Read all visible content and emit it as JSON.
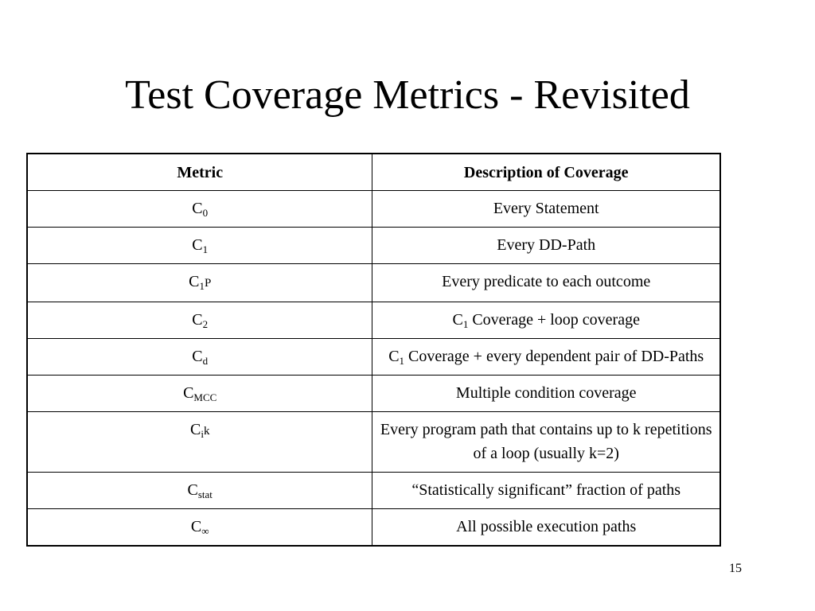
{
  "slide": {
    "title": "Test Coverage Metrics - Revisited",
    "page_number": "15"
  },
  "table": {
    "headers": [
      "Metric",
      "Description of Coverage"
    ],
    "rows": [
      {
        "metric": "C",
        "metric_sub": "0",
        "metric_suffix": "",
        "description_prefix": "",
        "description_sub": "",
        "description": "Every Statement"
      },
      {
        "metric": "C",
        "metric_sub": "1",
        "metric_suffix": "",
        "description_prefix": "",
        "description_sub": "",
        "description": "Every DD-Path"
      },
      {
        "metric": "C",
        "metric_sub": "1",
        "metric_suffix": "P",
        "description_prefix": "",
        "description_sub": "",
        "description": "Every predicate to each outcome"
      },
      {
        "metric": "C",
        "metric_sub": "2",
        "metric_suffix": "",
        "description_prefix": "C",
        "description_sub": "1",
        "description": " Coverage + loop coverage"
      },
      {
        "metric": "C",
        "metric_sub": "d",
        "metric_suffix": "",
        "description_prefix": "C",
        "description_sub": "1",
        "description": " Coverage + every dependent pair of DD-Paths"
      },
      {
        "metric": "C",
        "metric_sub": "MCC",
        "metric_suffix": "",
        "description_prefix": "",
        "description_sub": "",
        "description": "Multiple condition coverage"
      },
      {
        "metric": "C",
        "metric_sub": "i",
        "metric_suffix": "k",
        "description_prefix": "",
        "description_sub": "",
        "description": "Every program path that contains up to k repetitions of a loop (usually k=2)"
      },
      {
        "metric": "C",
        "metric_sub": "stat",
        "metric_suffix": "",
        "description_prefix": "",
        "description_sub": "",
        "description": "“Statistically significant” fraction of paths"
      },
      {
        "metric": "C",
        "metric_sub": "∞",
        "metric_suffix": "",
        "description_prefix": "",
        "description_sub": "",
        "description": "All possible execution paths"
      }
    ]
  }
}
